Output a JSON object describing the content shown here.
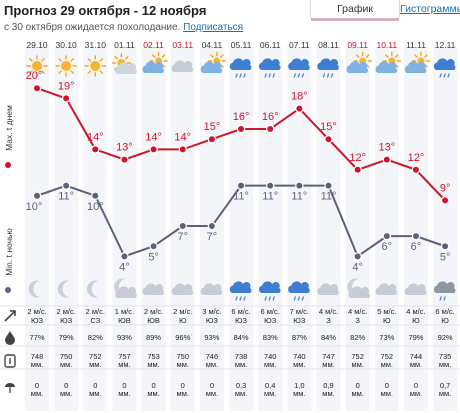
{
  "header": {
    "title": "Прогноз 29 октября - 12 ноября",
    "subtitle": "с 30 октября ожидается похолодание.",
    "subscribe": "Подписаться",
    "tab_graph": "График",
    "tab_histograms": "Гистограммы"
  },
  "side_labels": {
    "max": "Max. t днем",
    "min": "Min. t ночью"
  },
  "days": [
    {
      "date": "29.10",
      "weekend": false,
      "day_icon": "sun-icon",
      "max": "20°",
      "min": "10°",
      "night_icon": "moon-icon",
      "wind_speed": "2 м/с.",
      "wind_dir": "ЮЗ",
      "humidity": "77%",
      "pressure": "748",
      "pressure_unit": "мм.",
      "precip": "0",
      "precip_unit": "мм."
    },
    {
      "date": "30.10",
      "weekend": false,
      "day_icon": "sun-icon",
      "max": "19°",
      "min": "11°",
      "night_icon": "moon-icon",
      "wind_speed": "2 м/с.",
      "wind_dir": "ЮЗ",
      "humidity": "79%",
      "pressure": "750",
      "pressure_unit": "мм.",
      "precip": "0",
      "precip_unit": "мм."
    },
    {
      "date": "31.10",
      "weekend": false,
      "day_icon": "sun-icon",
      "max": "14°",
      "min": "10°",
      "night_icon": "moon-icon",
      "wind_speed": "2 м/с.",
      "wind_dir": "СЗ",
      "humidity": "82%",
      "pressure": "752",
      "pressure_unit": "мм.",
      "precip": "0",
      "precip_unit": "мм."
    },
    {
      "date": "01.11",
      "weekend": false,
      "day_icon": "sun-cloud-icon",
      "max": "13°",
      "min": "4°",
      "night_icon": "moon-cloud-icon",
      "wind_speed": "1 м/с.",
      "wind_dir": "ЮВ",
      "humidity": "93%",
      "pressure": "757",
      "pressure_unit": "мм.",
      "precip": "0",
      "precip_unit": "мм."
    },
    {
      "date": "02.11",
      "weekend": true,
      "day_icon": "cloud-sun-icon",
      "max": "14°",
      "min": "5°",
      "night_icon": "cloud-icon",
      "wind_speed": "2 м/с.",
      "wind_dir": "ЮВ",
      "humidity": "89%",
      "pressure": "753",
      "pressure_unit": "мм.",
      "precip": "0",
      "precip_unit": "мм."
    },
    {
      "date": "03.11",
      "weekend": true,
      "day_icon": "cloud-icon",
      "max": "14°",
      "min": "7°",
      "night_icon": "cloud-icon",
      "wind_speed": "2 м/с.",
      "wind_dir": "Ю",
      "humidity": "96%",
      "pressure": "750",
      "pressure_unit": "мм.",
      "precip": "0",
      "precip_unit": "мм."
    },
    {
      "date": "04.11",
      "weekend": false,
      "day_icon": "cloud-sun-icon",
      "max": "15°",
      "min": "7°",
      "night_icon": "cloud-icon",
      "wind_speed": "3 м/с.",
      "wind_dir": "ЮЗ",
      "humidity": "93%",
      "pressure": "746",
      "pressure_unit": "мм.",
      "precip": "0",
      "precip_unit": "мм."
    },
    {
      "date": "05.11",
      "weekend": false,
      "day_icon": "rain-icon",
      "max": "16°",
      "min": "11°",
      "night_icon": "rain-icon",
      "wind_speed": "6 м/с.",
      "wind_dir": "ЮЗ",
      "humidity": "84%",
      "pressure": "738",
      "pressure_unit": "мм.",
      "precip": "0,3",
      "precip_unit": "мм."
    },
    {
      "date": "06.11",
      "weekend": false,
      "day_icon": "rain-icon",
      "max": "16°",
      "min": "11°",
      "night_icon": "rain-icon",
      "wind_speed": "6 м/с.",
      "wind_dir": "ЮЗ",
      "humidity": "83%",
      "pressure": "740",
      "pressure_unit": "мм.",
      "precip": "0,4",
      "precip_unit": "мм."
    },
    {
      "date": "07.11",
      "weekend": false,
      "day_icon": "rain-icon",
      "max": "18°",
      "min": "11°",
      "night_icon": "rain-icon",
      "wind_speed": "7 м/с.",
      "wind_dir": "ЮЗ",
      "humidity": "87%",
      "pressure": "740",
      "pressure_unit": "мм.",
      "precip": "1,0",
      "precip_unit": "мм."
    },
    {
      "date": "08.11",
      "weekend": false,
      "day_icon": "rain-icon",
      "max": "15°",
      "min": "11°",
      "night_icon": "cloud-icon",
      "wind_speed": "4 м/с.",
      "wind_dir": "З",
      "humidity": "84%",
      "pressure": "747",
      "pressure_unit": "мм.",
      "precip": "0,9",
      "precip_unit": "мм."
    },
    {
      "date": "09.11",
      "weekend": true,
      "day_icon": "cloud-sun-icon",
      "max": "12°",
      "min": "4°",
      "night_icon": "moon-cloud-icon",
      "wind_speed": "4 м/с.",
      "wind_dir": "З",
      "humidity": "82%",
      "pressure": "752",
      "pressure_unit": "мм.",
      "precip": "0",
      "precip_unit": "мм."
    },
    {
      "date": "10.11",
      "weekend": true,
      "day_icon": "cloud-sun-icon",
      "max": "13°",
      "min": "6°",
      "night_icon": "cloud-icon",
      "wind_speed": "5 м/с.",
      "wind_dir": "Ю",
      "humidity": "73%",
      "pressure": "752",
      "pressure_unit": "мм.",
      "precip": "0",
      "precip_unit": "мм."
    },
    {
      "date": "11.11",
      "weekend": false,
      "day_icon": "cloud-sun-icon",
      "max": "12°",
      "min": "6°",
      "night_icon": "cloud-icon",
      "wind_speed": "4 м/с.",
      "wind_dir": "Ю",
      "humidity": "79%",
      "pressure": "744",
      "pressure_unit": "мм.",
      "precip": "0",
      "precip_unit": "мм."
    },
    {
      "date": "12.11",
      "weekend": false,
      "day_icon": "rain-icon",
      "max": "9°",
      "min": "5°",
      "night_icon": "rain-cloud-icon",
      "wind_speed": "6 м/с.",
      "wind_dir": "Ю",
      "humidity": "92%",
      "pressure": "735",
      "pressure_unit": "мм.",
      "precip": "0,7",
      "precip_unit": "мм."
    }
  ],
  "chart_data": {
    "type": "line",
    "x": [
      "29.10",
      "30.10",
      "31.10",
      "01.11",
      "02.11",
      "03.11",
      "04.11",
      "05.11",
      "06.11",
      "07.11",
      "08.11",
      "09.11",
      "10.11",
      "11.11",
      "12.11"
    ],
    "series": [
      {
        "name": "Max. t днем",
        "color": "#d0142c",
        "values": [
          20,
          19,
          14,
          13,
          14,
          14,
          15,
          16,
          16,
          18,
          15,
          12,
          13,
          12,
          9
        ]
      },
      {
        "name": "Min. t ночью",
        "color": "#5a6278",
        "values": [
          10,
          11,
          10,
          4,
          5,
          7,
          7,
          11,
          11,
          11,
          11,
          4,
          6,
          6,
          5
        ]
      }
    ],
    "grid": true
  },
  "colors": {
    "weekend": "#c8102e",
    "max_line": "#d0142c",
    "min_line": "#5a6278",
    "column_bg": "#f3f5f8"
  }
}
